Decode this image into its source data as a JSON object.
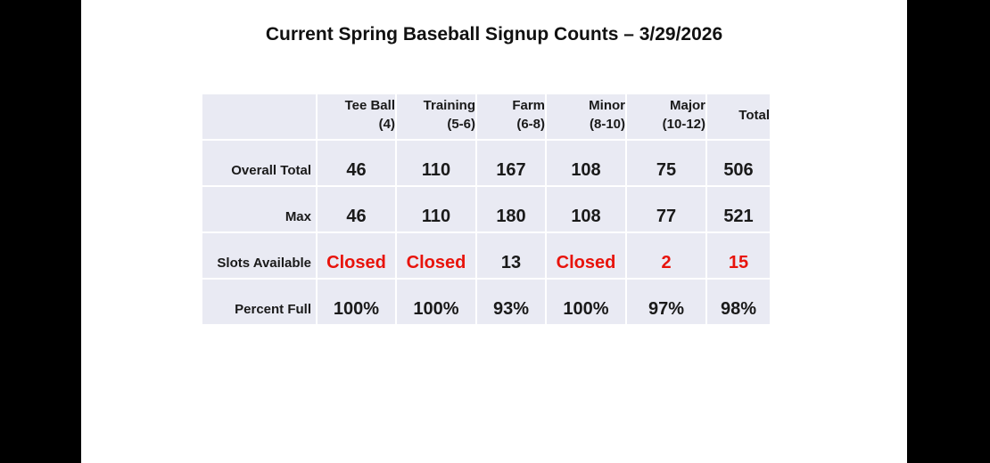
{
  "title": "Current Spring Baseball Signup Counts – 3/29/2026",
  "colors": {
    "accent_red": "#e8130b",
    "cell_bg": "#e9eaf3",
    "slide_bg": "#ffffff",
    "letterbox_bg": "#000000",
    "text": "#1a1a1a"
  },
  "table": {
    "column_headers": [
      {
        "line1": "Tee Ball",
        "line2": "(4)"
      },
      {
        "line1": "Training",
        "line2": "(5-6)"
      },
      {
        "line1": "Farm",
        "line2": "(6-8)"
      },
      {
        "line1": "Minor",
        "line2": "(8-10)"
      },
      {
        "line1": "Major",
        "line2": "(10-12)"
      },
      {
        "line1": "",
        "line2": "Total"
      }
    ],
    "rows": [
      {
        "label": "Overall Total",
        "values": [
          "46",
          "110",
          "167",
          "108",
          "75",
          "506"
        ]
      },
      {
        "label": "Max",
        "values": [
          "46",
          "110",
          "180",
          "108",
          "77",
          "521"
        ]
      },
      {
        "label": "Slots Available",
        "values": [
          "Closed",
          "Closed",
          "13",
          "Closed",
          "2",
          "15"
        ]
      },
      {
        "label": "Percent Full",
        "values": [
          "100%",
          "100%",
          "93%",
          "100%",
          "97%",
          "98%"
        ]
      }
    ]
  },
  "chart_data": {
    "type": "table",
    "title": "Current Spring Baseball Signup Counts – 3/29/2026",
    "columns": [
      "Tee Ball (4)",
      "Training (5-6)",
      "Farm (6-8)",
      "Minor (8-10)",
      "Major (10-12)",
      "Total"
    ],
    "rows": [
      {
        "label": "Overall Total",
        "values": [
          46,
          110,
          167,
          108,
          75,
          506
        ]
      },
      {
        "label": "Max",
        "values": [
          46,
          110,
          180,
          108,
          77,
          521
        ]
      },
      {
        "label": "Slots Available",
        "values": [
          "Closed",
          "Closed",
          13,
          "Closed",
          2,
          15
        ]
      },
      {
        "label": "Percent Full",
        "values": [
          "100%",
          "100%",
          "93%",
          "100%",
          "97%",
          "98%"
        ]
      }
    ],
    "notes": "Closed and the values 2 and 15 in Slots Available row are shown in red"
  }
}
